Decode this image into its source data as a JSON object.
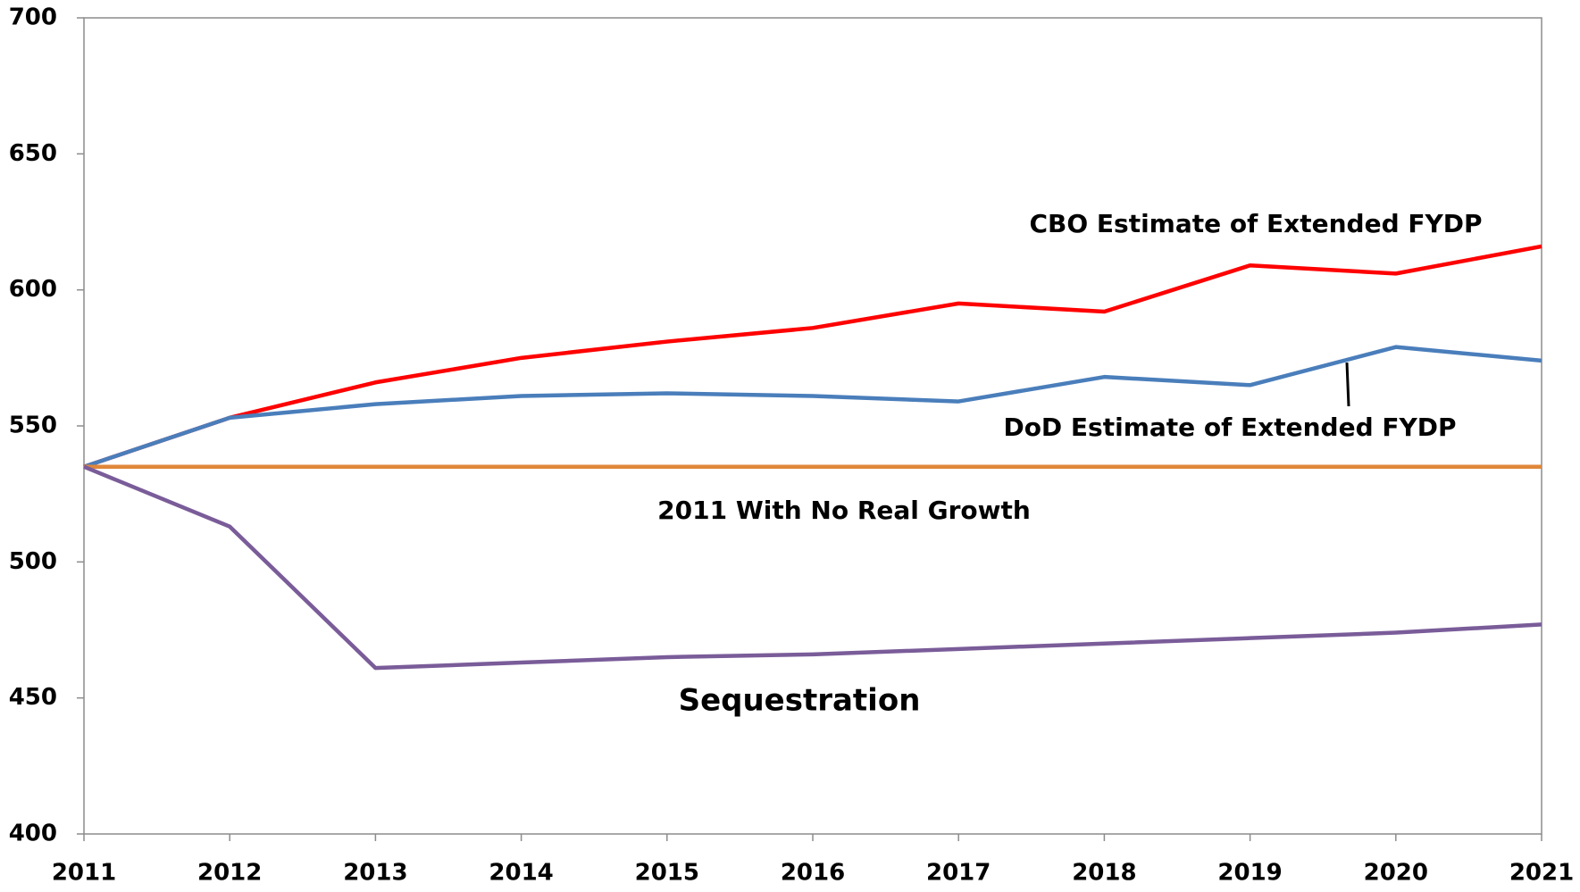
{
  "chart_data": {
    "type": "line",
    "x": [
      2011,
      2012,
      2013,
      2014,
      2015,
      2016,
      2017,
      2018,
      2019,
      2020,
      2021
    ],
    "xlim": [
      2011,
      2021
    ],
    "xticks": [
      2011,
      2012,
      2013,
      2014,
      2015,
      2016,
      2017,
      2018,
      2019,
      2020,
      2021
    ],
    "ylim": [
      400,
      700
    ],
    "yticks": [
      400,
      450,
      500,
      550,
      600,
      650,
      700
    ],
    "grid": false,
    "series": [
      {
        "name": "CBO Estimate of Extended FYDP",
        "color": "#ff0000",
        "values": [
          535,
          553,
          566,
          575,
          581,
          586,
          595,
          592,
          609,
          606,
          616
        ]
      },
      {
        "name": "DoD Estimate of Extended FYDP",
        "color": "#4a7ebb",
        "values": [
          535,
          553,
          558,
          561,
          562,
          561,
          559,
          568,
          565,
          579,
          574
        ]
      },
      {
        "name": "2011 With No Real Growth",
        "color": "#e0873a",
        "values": [
          535,
          535,
          535,
          535,
          535,
          535,
          535,
          535,
          535,
          535,
          535
        ]
      },
      {
        "name": "Sequestration",
        "color": "#7a5c99",
        "values": [
          535,
          513,
          461,
          463,
          465,
          466,
          468,
          470,
          472,
          474,
          477
        ]
      }
    ]
  }
}
